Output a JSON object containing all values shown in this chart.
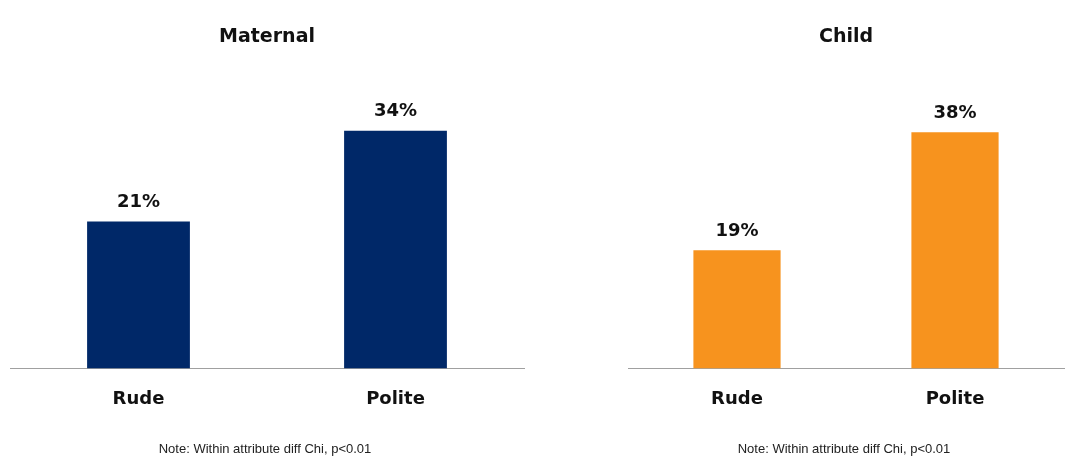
{
  "chart_data": [
    {
      "type": "bar",
      "title": "Maternal",
      "categories": [
        "Rude",
        "Polite"
      ],
      "values": [
        21,
        34
      ],
      "value_labels": [
        "21%",
        "34%"
      ],
      "color": "#002868",
      "grid": false,
      "legend": false,
      "tick_labels": "x",
      "annotations": [
        "Note: Within attribute diff Chi, p<0.01"
      ]
    },
    {
      "type": "bar",
      "title": "Child",
      "categories": [
        "Rude",
        "Polite"
      ],
      "values": [
        19,
        38
      ],
      "value_labels": [
        "19%",
        "38%"
      ],
      "color": "#f7931e",
      "grid": false,
      "legend": false,
      "tick_labels": "x",
      "annotations": [
        "Note: Within attribute diff Chi, p<0.01"
      ]
    }
  ]
}
